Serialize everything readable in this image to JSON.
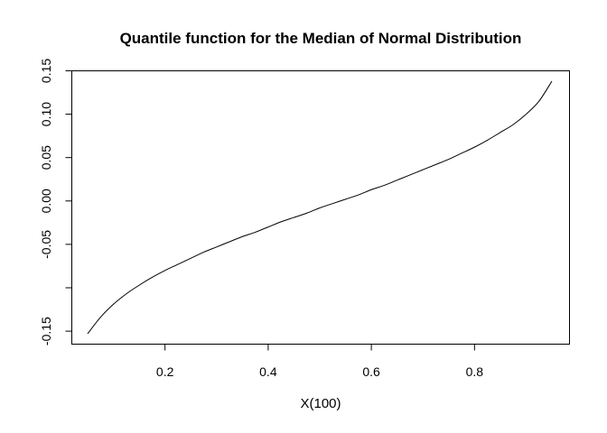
{
  "chart_data": {
    "type": "line",
    "title": "Quantile function for the Median of Normal Distribution",
    "xlabel": "X(100)",
    "ylabel": "",
    "xlim": [
      0.05,
      0.95
    ],
    "ylim": [
      -0.153,
      0.138
    ],
    "x_ticks": [
      {
        "value": 0.2,
        "label": "0.2"
      },
      {
        "value": 0.4,
        "label": "0.4"
      },
      {
        "value": 0.6,
        "label": "0.6"
      },
      {
        "value": 0.8,
        "label": "0.8"
      }
    ],
    "y_ticks": [
      {
        "value": -0.15,
        "label": "-0.15"
      },
      {
        "value": -0.1,
        "label": ""
      },
      {
        "value": -0.05,
        "label": "-0.05"
      },
      {
        "value": 0.0,
        "label": "0.00"
      },
      {
        "value": 0.05,
        "label": "0.05"
      },
      {
        "value": 0.1,
        "label": "0.10"
      },
      {
        "value": 0.15,
        "label": "0.15"
      }
    ],
    "grid": false,
    "legend": "none",
    "series": [
      {
        "color": "#000000",
        "x": [
          0.05,
          0.075,
          0.1,
          0.125,
          0.15,
          0.175,
          0.2,
          0.225,
          0.25,
          0.275,
          0.3,
          0.325,
          0.35,
          0.375,
          0.4,
          0.425,
          0.45,
          0.475,
          0.5,
          0.525,
          0.55,
          0.575,
          0.6,
          0.625,
          0.65,
          0.675,
          0.7,
          0.725,
          0.75,
          0.775,
          0.8,
          0.825,
          0.85,
          0.875,
          0.9,
          0.925,
          0.95
        ],
        "y": [
          -0.153,
          -0.134,
          -0.119,
          -0.107,
          -0.097,
          -0.088,
          -0.08,
          -0.073,
          -0.066,
          -0.059,
          -0.053,
          -0.047,
          -0.041,
          -0.036,
          -0.03,
          -0.024,
          -0.019,
          -0.014,
          -0.008,
          -0.003,
          0.002,
          0.007,
          0.013,
          0.018,
          0.024,
          0.03,
          0.036,
          0.042,
          0.048,
          0.055,
          0.062,
          0.07,
          0.079,
          0.088,
          0.1,
          0.115,
          0.138
        ]
      }
    ]
  }
}
